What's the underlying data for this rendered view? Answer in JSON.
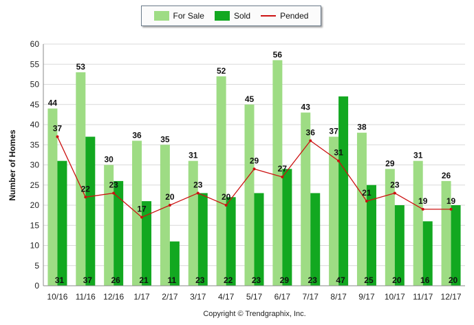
{
  "legend": {
    "for_sale": "For Sale",
    "sold": "Sold",
    "pended": "Pended"
  },
  "copyright": "Copyright © Trendgraphix, Inc.",
  "colors": {
    "for_sale": "#9edc84",
    "sold": "#12a820",
    "pended": "#cc1111",
    "grid": "#d9d9d9"
  },
  "chart_data": {
    "type": "bar",
    "title": "",
    "xlabel": "",
    "ylabel": "Number of Homes",
    "ylim": [
      0,
      60
    ],
    "yticks": [
      0,
      5,
      10,
      15,
      20,
      25,
      30,
      35,
      40,
      45,
      50,
      55,
      60
    ],
    "grid": true,
    "legend_position": "top-center",
    "categories": [
      "10/16",
      "11/16",
      "12/16",
      "1/17",
      "2/17",
      "3/17",
      "4/17",
      "5/17",
      "6/17",
      "7/17",
      "8/17",
      "9/17",
      "10/17",
      "11/17",
      "12/17"
    ],
    "series": [
      {
        "name": "For Sale",
        "kind": "bar",
        "values": [
          44,
          53,
          30,
          36,
          35,
          31,
          52,
          45,
          56,
          43,
          37,
          38,
          29,
          31,
          26
        ]
      },
      {
        "name": "Sold",
        "kind": "bar",
        "values": [
          31,
          37,
          26,
          21,
          11,
          23,
          22,
          23,
          29,
          23,
          47,
          25,
          20,
          16,
          20
        ]
      },
      {
        "name": "Pended",
        "kind": "line",
        "values": [
          37,
          22,
          23,
          17,
          20,
          23,
          20,
          29,
          27,
          36,
          31,
          21,
          23,
          19,
          19
        ]
      }
    ]
  }
}
